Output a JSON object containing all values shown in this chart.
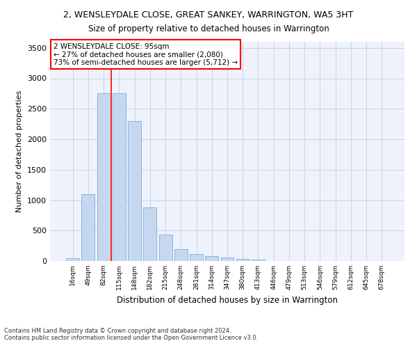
{
  "title1": "2, WENSLEYDALE CLOSE, GREAT SANKEY, WARRINGTON, WA5 3HT",
  "title2": "Size of property relative to detached houses in Warrington",
  "xlabel": "Distribution of detached houses by size in Warrington",
  "ylabel": "Number of detached properties",
  "categories": [
    "16sqm",
    "49sqm",
    "82sqm",
    "115sqm",
    "148sqm",
    "182sqm",
    "215sqm",
    "248sqm",
    "281sqm",
    "314sqm",
    "347sqm",
    "380sqm",
    "413sqm",
    "446sqm",
    "479sqm",
    "513sqm",
    "546sqm",
    "579sqm",
    "612sqm",
    "645sqm",
    "678sqm"
  ],
  "values": [
    50,
    1100,
    2750,
    2750,
    2300,
    880,
    430,
    200,
    110,
    80,
    55,
    35,
    20,
    0,
    0,
    0,
    0,
    0,
    0,
    0,
    0
  ],
  "bar_color": "#c5d8f0",
  "bar_edge_color": "#7bafd4",
  "vline_color": "red",
  "vline_x_index": 2,
  "annotation_text": "2 WENSLEYDALE CLOSE: 95sqm\n← 27% of detached houses are smaller (2,080)\n73% of semi-detached houses are larger (5,712) →",
  "annotation_box_color": "white",
  "annotation_box_edge": "red",
  "ylim": [
    0,
    3600
  ],
  "yticks": [
    0,
    500,
    1000,
    1500,
    2000,
    2500,
    3000,
    3500
  ],
  "footer": "Contains HM Land Registry data © Crown copyright and database right 2024.\nContains public sector information licensed under the Open Government Licence v3.0.",
  "bg_color": "#eef2fb",
  "grid_color": "#c8d0e8"
}
